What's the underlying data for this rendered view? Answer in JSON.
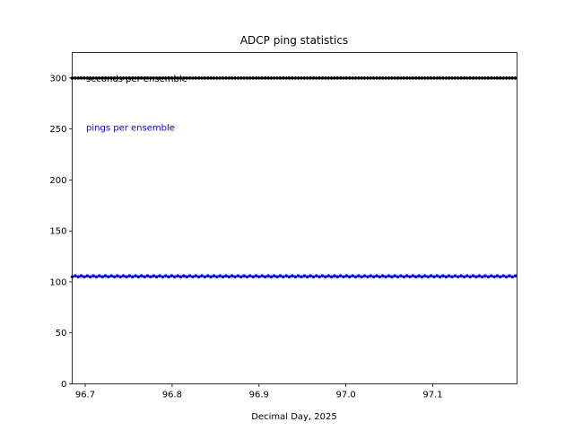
{
  "chart_data": {
    "type": "line",
    "title": "ADCP  ping statistics",
    "xlabel": "Decimal Day, 2025",
    "ylabel": "",
    "xlim": [
      96.685,
      97.197
    ],
    "ylim": [
      0,
      325
    ],
    "xticks": [
      96.7,
      96.8,
      96.9,
      97.0,
      97.1
    ],
    "xtick_labels": [
      "96.7",
      "96.8",
      "96.9",
      "97.0",
      "97.1"
    ],
    "yticks": [
      0,
      50,
      100,
      150,
      200,
      250,
      300
    ],
    "ytick_labels": [
      "0",
      "50",
      "100",
      "150",
      "200",
      "250",
      "300"
    ],
    "grid": false,
    "annotations": [
      {
        "text": "seconds per ensemble",
        "color": "#000000",
        "x": 96.7,
        "y": 300
      },
      {
        "text": "pings per ensemble",
        "color": "#0000ff",
        "x": 96.7,
        "y": 252
      }
    ],
    "series": [
      {
        "label": "seconds per ensemble",
        "color": "#000000",
        "x_start": 96.685,
        "x_end": 97.197,
        "x_step": 0.00347,
        "values": [
          300
        ],
        "marker": "dot"
      },
      {
        "label": "pings per ensemble",
        "color": "#0000ff",
        "x_start": 96.685,
        "x_end": 97.197,
        "x_step": 0.00347,
        "values": [
          105,
          106
        ],
        "marker": "dot"
      }
    ]
  }
}
